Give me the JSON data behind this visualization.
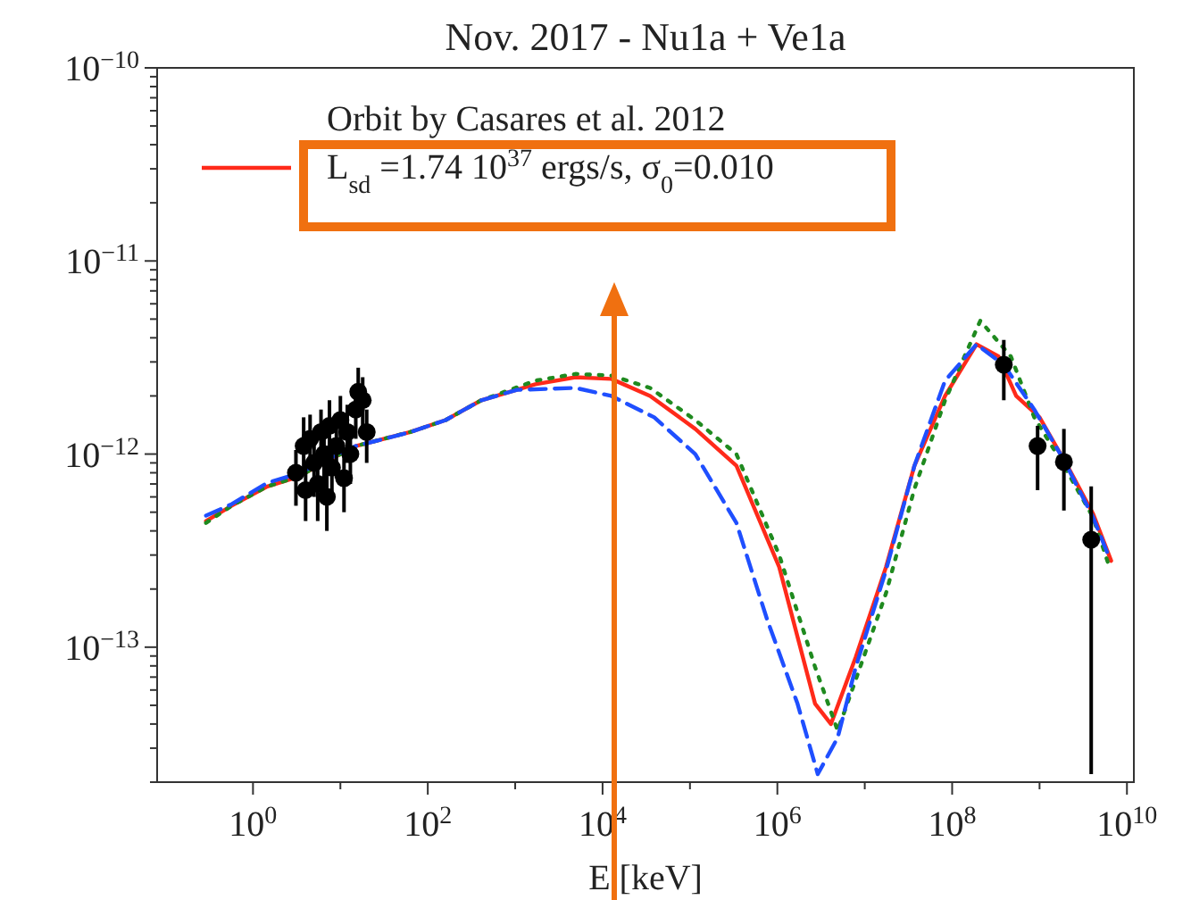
{
  "chart_data": {
    "type": "line",
    "title": "Nov. 2017 - Nu1a + Ve1a",
    "xlabel": "E [keV]",
    "log": "xy",
    "legend": "top left",
    "xlim": [
      0.08,
      12000000000.0
    ],
    "ylim": [
      2e-14,
      1e-10
    ],
    "xticks": [
      {
        "value": 1,
        "label": "10$^{0}$"
      },
      {
        "value": 10,
        "label": null
      },
      {
        "value": 100,
        "label": "10$^{2}$"
      },
      {
        "value": 1000,
        "label": null
      },
      {
        "value": 10000,
        "label": "10$^{4}$"
      },
      {
        "value": 100000,
        "label": null
      },
      {
        "value": 1000000,
        "label": "10$^{6}$"
      },
      {
        "value": 10000000,
        "label": null
      },
      {
        "value": 100000000,
        "label": "10$^{8}$"
      },
      {
        "value": 1000000000,
        "label": null
      },
      {
        "value": 10000000000,
        "label": "10$^{10}$"
      }
    ],
    "yticks": [
      {
        "value": 1e-10,
        "label": "10$^{−10}$"
      },
      {
        "value": 1e-11,
        "label": "10$^{−11}$"
      },
      {
        "value": 1e-12,
        "label": "10$^{−12}$"
      },
      {
        "value": 1e-13,
        "label": "10$^{−13}$"
      },
      {
        "value": 2e-14,
        "label": null
      },
      {
        "value": 3e-14,
        "label": null
      },
      {
        "value": 4e-14,
        "label": null
      },
      {
        "value": 5e-14,
        "label": null
      },
      {
        "value": 6e-14,
        "label": null
      },
      {
        "value": 7e-14,
        "label": null
      },
      {
        "value": 8e-14,
        "label": null
      },
      {
        "value": 9e-14,
        "label": null
      },
      {
        "value": 2e-13,
        "label": null
      },
      {
        "value": 3e-13,
        "label": null
      },
      {
        "value": 4e-13,
        "label": null
      },
      {
        "value": 5e-13,
        "label": null
      },
      {
        "value": 6e-13,
        "label": null
      },
      {
        "value": 7e-13,
        "label": null
      },
      {
        "value": 8e-13,
        "label": null
      },
      {
        "value": 9e-13,
        "label": null
      },
      {
        "value": 2e-12,
        "label": null
      },
      {
        "value": 3e-12,
        "label": null
      },
      {
        "value": 4e-12,
        "label": null
      },
      {
        "value": 5e-12,
        "label": null
      },
      {
        "value": 6e-12,
        "label": null
      },
      {
        "value": 7e-12,
        "label": null
      },
      {
        "value": 8e-12,
        "label": null
      },
      {
        "value": 9e-12,
        "label": null
      },
      {
        "value": 2e-11,
        "label": null
      },
      {
        "value": 3e-11,
        "label": null
      },
      {
        "value": 4e-11,
        "label": null
      },
      {
        "value": 5e-11,
        "label": null
      },
      {
        "value": 6e-11,
        "label": null
      },
      {
        "value": 7e-11,
        "label": null
      },
      {
        "value": 8e-11,
        "label": null
      },
      {
        "value": 9e-11,
        "label": null
      }
    ],
    "series": [
      {
        "name": "Orbit by Casares et al. 2012\nL$_{sd}$ =1.74 10$^{37}$ ergs/s, σ$_{0}$=0.010",
        "color": "#ff2a1a",
        "line_style": "solid",
        "x": [
          0.29,
          0.57,
          1.46,
          3.2,
          15,
          63,
          160,
          410,
          1700,
          4900,
          12600,
          35000,
          115000,
          340000,
          1050000,
          2700000,
          4100000,
          7900000,
          17500000,
          37000000,
          83000000,
          190000000,
          340000000,
          540000000,
          1000000000,
          2200000000,
          4100000000,
          6600000000
        ],
        "values": [
          4.5e-13,
          5.4e-13,
          6.8e-13,
          7.6e-13,
          1.1e-12,
          1.3e-12,
          1.5e-12,
          1.9e-12,
          2.3e-12,
          2.5e-12,
          2.45e-12,
          2e-12,
          1.35e-12,
          8.7e-13,
          2.6e-13,
          5.1e-14,
          4e-14,
          8.9e-14,
          2.6e-13,
          8.7e-13,
          2e-12,
          3.7e-12,
          3.2e-12,
          2e-12,
          1.55e-12,
          8.3e-13,
          4.9e-13,
          2.8e-13
        ]
      },
      {
        "color": "#1f8a1f",
        "line_style": "dotted",
        "x": [
          0.29,
          0.57,
          1.46,
          3.2,
          15,
          63,
          160,
          410,
          1700,
          4900,
          12600,
          35000,
          115000,
          340000,
          1050000,
          2700000,
          4900000,
          7900000,
          17500000,
          37000000,
          83000000,
          210000000,
          470000000,
          870000000,
          1900000000,
          4100000000,
          6300000000
        ],
        "values": [
          4.4e-13,
          5.4e-13,
          6.8e-13,
          7.6e-13,
          1.1e-12,
          1.3e-12,
          1.5e-12,
          1.9e-12,
          2.4e-12,
          2.6e-12,
          2.55e-12,
          2.2e-12,
          1.5e-12,
          1e-12,
          3e-13,
          7.9e-14,
          3.7e-14,
          6.8e-14,
          1.9e-13,
          6.6e-13,
          1.9e-12,
          4.9e-12,
          3.2e-12,
          1.55e-12,
          8.7e-13,
          4.7e-13,
          2.6e-13
        ]
      },
      {
        "color": "#1f4fff",
        "line_style": "dashed",
        "x": [
          0.29,
          0.57,
          1.46,
          3.2,
          15,
          63,
          160,
          410,
          1050,
          4900,
          12600,
          39000,
          115000,
          340000,
          760000,
          1700000,
          2900000,
          4900000,
          7900000,
          17500000,
          37000000,
          83000000,
          190000000,
          390000000,
          870000000,
          1900000000,
          4100000000,
          6300000000
        ],
        "values": [
          4.8e-13,
          5.5e-13,
          7.1e-13,
          7.9e-13,
          1.1e-12,
          1.3e-12,
          1.5e-12,
          1.9e-12,
          2.15e-12,
          2.2e-12,
          2e-12,
          1.55e-12,
          1e-12,
          4.4e-13,
          1.4e-13,
          5.1e-14,
          2.2e-14,
          3.4e-14,
          7.9e-14,
          2.5e-13,
          8.7e-13,
          2.4e-12,
          3.7e-12,
          2.9e-12,
          1.7e-12,
          9.3e-13,
          4.7e-13,
          2.9e-13
        ]
      },
      {
        "type": "scatter",
        "color": "#000000",
        "marker": "circle",
        "x": [
          3.1,
          3.8,
          4,
          4.5,
          5,
          5.5,
          6,
          6.5,
          7,
          7.5,
          8,
          9,
          10,
          11,
          12,
          13,
          15,
          16,
          18,
          20,
          390000000,
          950000000,
          1900000000,
          3900000000
        ],
        "values": [
          8e-13,
          1.1e-12,
          6.5e-13,
          1.2e-12,
          9e-13,
          7e-13,
          1.3e-12,
          1e-12,
          6e-13,
          1.4e-12,
          8.5e-13,
          1.1e-12,
          1.5e-12,
          7.5e-13,
          1.3e-12,
          1e-12,
          1.7e-12,
          2.1e-12,
          1.9e-12,
          1.3e-12,
          2.9e-12,
          1.1e-12,
          9.1e-13,
          3.6e-13
        ],
        "errors": [
          [
            5.4e-13,
            1.05e-12
          ],
          [
            8.2e-13,
            1.55e-12
          ],
          [
            4.5e-13,
            9e-13
          ],
          [
            8.5e-13,
            1.6e-12
          ],
          [
            6e-13,
            1.3e-12
          ],
          [
            4.5e-13,
            1e-12
          ],
          [
            9e-13,
            1.7e-12
          ],
          [
            7e-13,
            1.4e-12
          ],
          [
            4e-13,
            8.5e-13
          ],
          [
            1e-12,
            1.9e-12
          ],
          [
            6e-13,
            1.2e-12
          ],
          [
            7.5e-13,
            1.5e-12
          ],
          [
            1.1e-12,
            2e-12
          ],
          [
            5e-13,
            1.05e-12
          ],
          [
            9e-13,
            1.8e-12
          ],
          [
            7e-13,
            1.4e-12
          ],
          [
            1.2e-12,
            2.3e-12
          ],
          [
            1.6e-12,
            2.8e-12
          ],
          [
            1.4e-12,
            2.5e-12
          ],
          [
            9e-13,
            1.7e-12
          ],
          [
            1.9e-12,
            3.9e-12
          ],
          [
            6.5e-13,
            1.4e-12
          ],
          [
            5.1e-13,
            1.35e-12
          ],
          [
            2.2e-14,
            6.8e-13
          ]
        ]
      }
    ]
  }
}
